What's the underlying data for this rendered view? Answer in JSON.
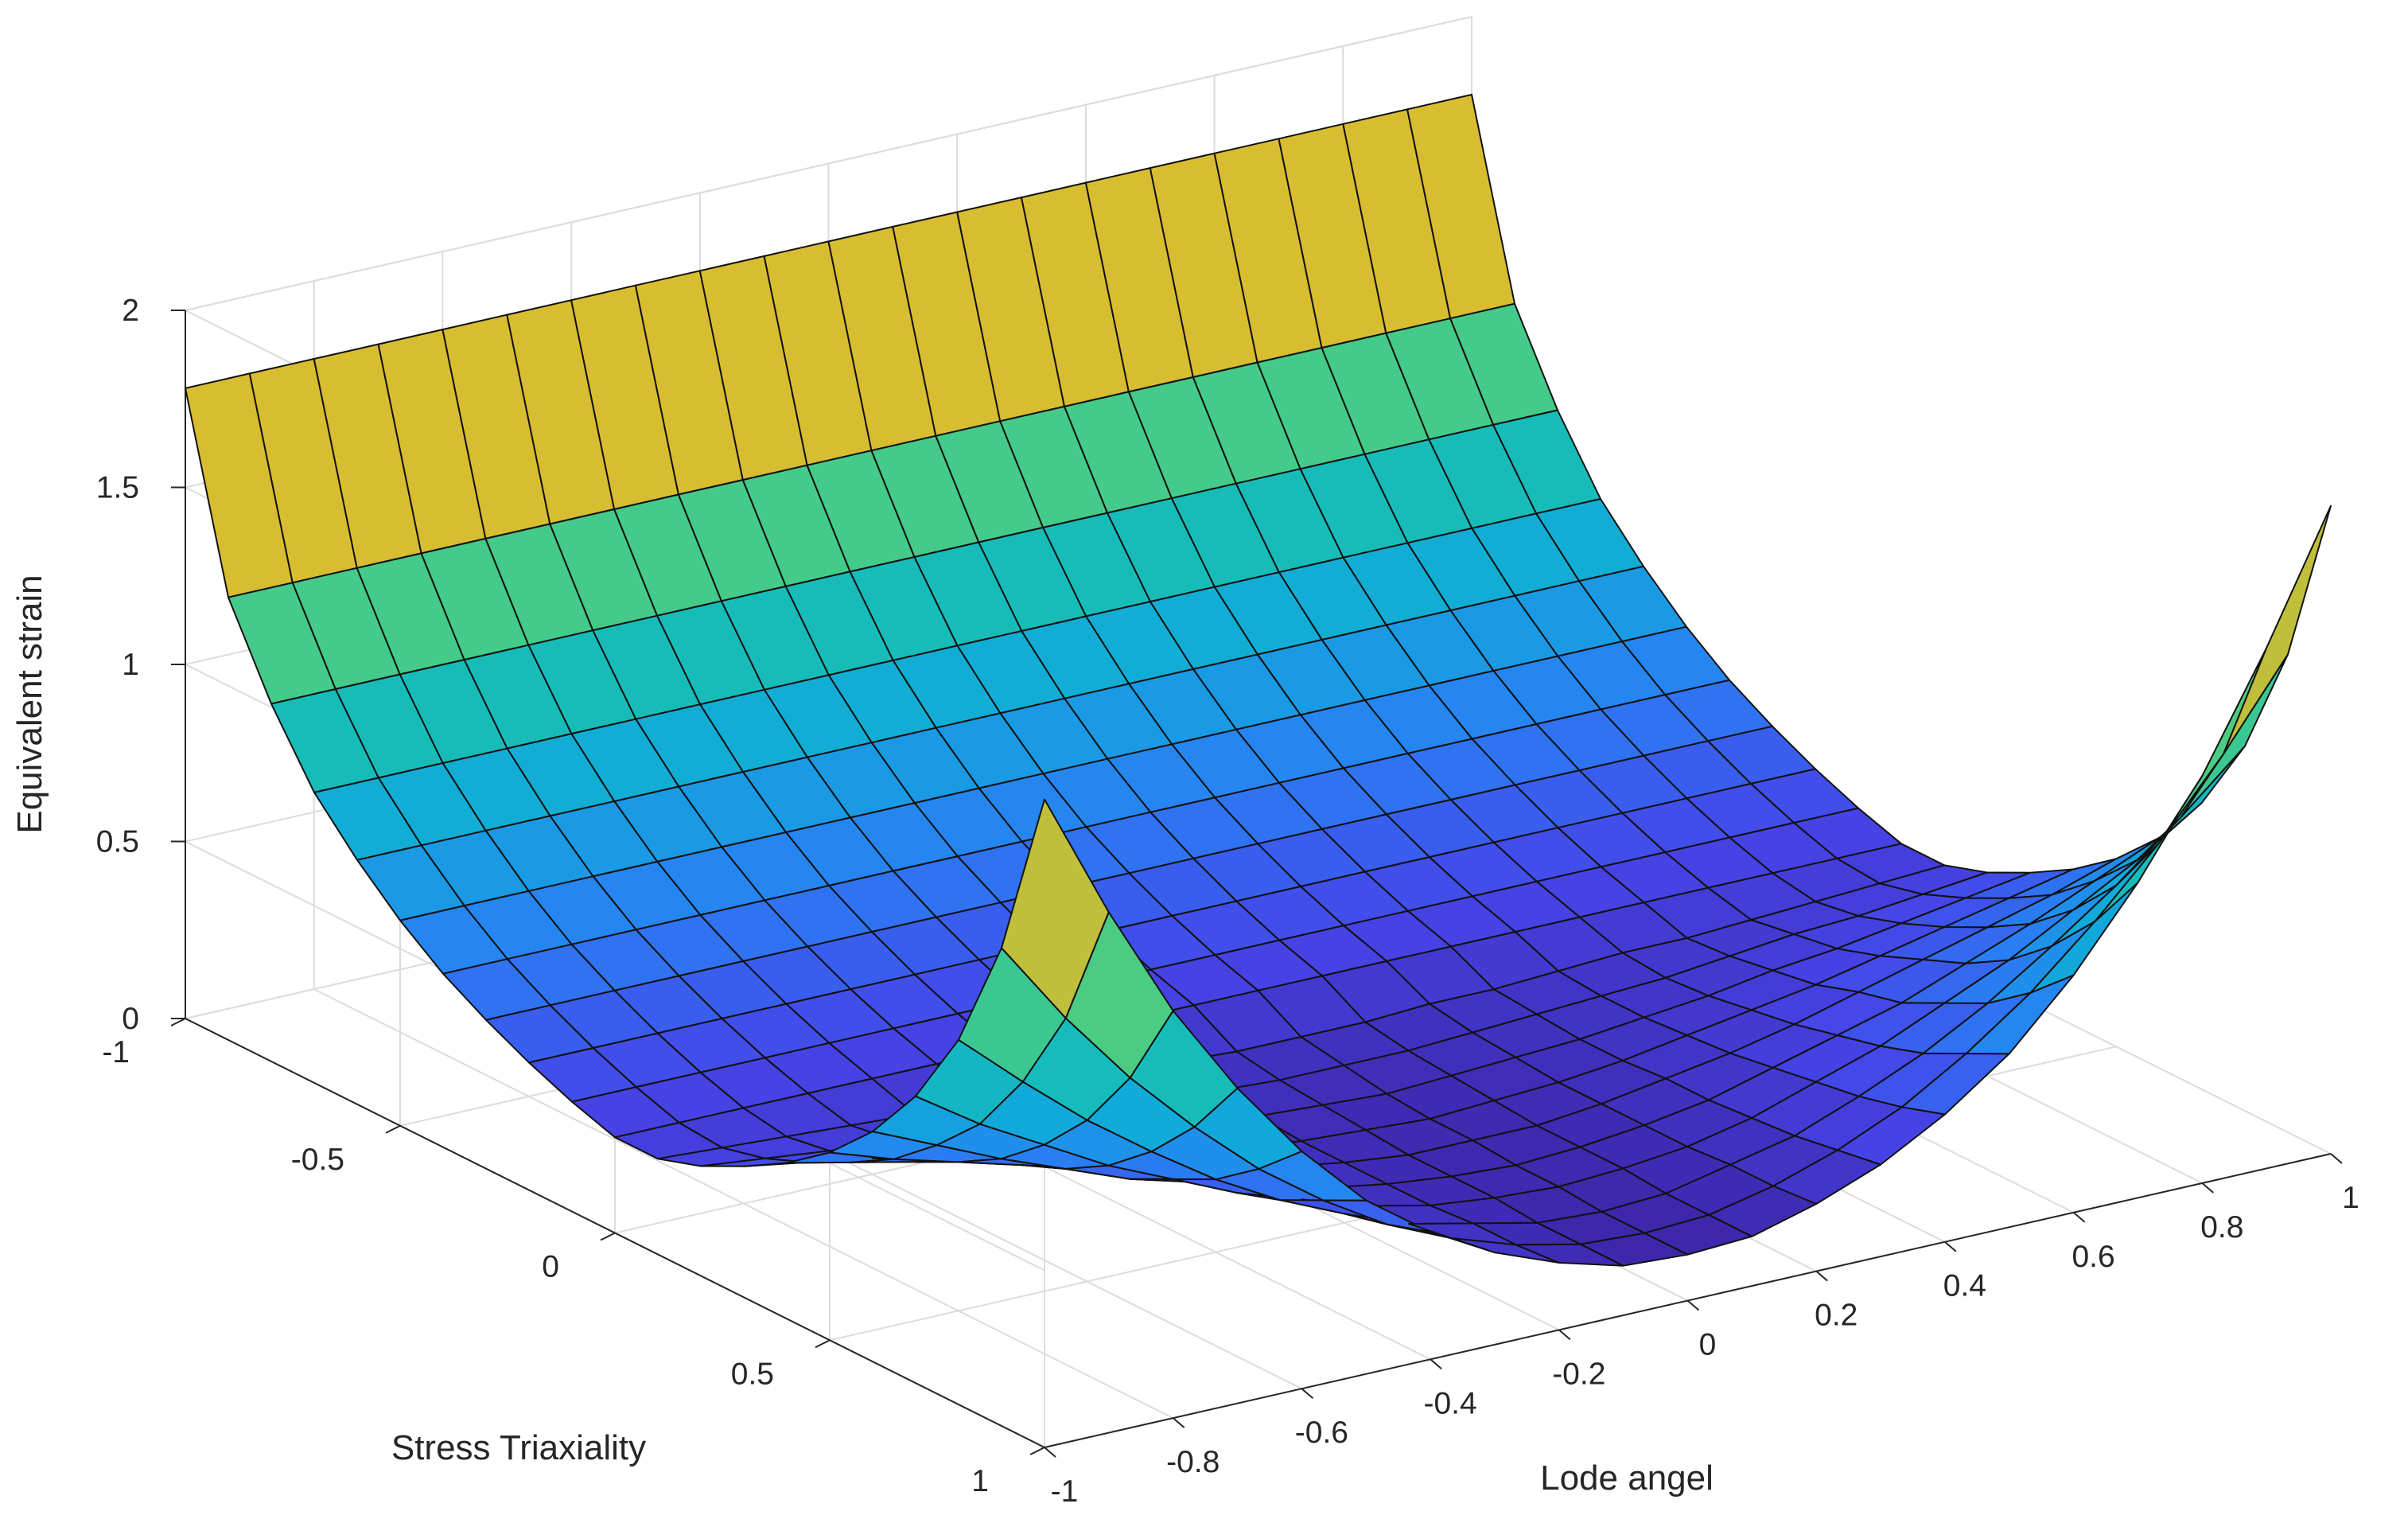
{
  "chart_data": {
    "type": "surface",
    "title": "",
    "xlabel": "Lode angel",
    "ylabel": "Stress Triaxiality",
    "zlabel": "Equivalent strain",
    "xlim": [
      -1,
      1
    ],
    "ylim": [
      -1,
      1
    ],
    "zlim": [
      0,
      2
    ],
    "xticks": [
      -1,
      -0.8,
      -0.6,
      -0.4,
      -0.2,
      0,
      0.2,
      0.4,
      0.6,
      0.8,
      1
    ],
    "xtick_labels": [
      "-1",
      "-0.8",
      "-0.6",
      "-0.4",
      "-0.2",
      "0",
      "0.2",
      "0.4",
      "0.6",
      "0.8",
      "1"
    ],
    "yticks": [
      -1,
      -0.5,
      0,
      0.5,
      1
    ],
    "ytick_labels": [
      "-1",
      "-0.5",
      "0",
      "0.5",
      "1"
    ],
    "zticks": [
      0,
      0.5,
      1,
      1.5,
      2
    ],
    "ztick_labels": [
      "0",
      "0.5",
      "1",
      "1.5",
      "2"
    ],
    "grid": true,
    "colormap": "parula",
    "x": [
      -1,
      -0.9,
      -0.8,
      -0.7,
      -0.6,
      -0.5,
      -0.4,
      -0.3,
      -0.2,
      -0.1,
      0,
      0.1,
      0.2,
      0.3,
      0.4,
      0.5,
      0.6,
      0.7,
      0.8,
      0.9,
      1
    ],
    "y": [
      -1,
      -0.9,
      -0.8,
      -0.7,
      -0.6,
      -0.5,
      -0.4,
      -0.3,
      -0.2,
      -0.1,
      0,
      0.1,
      0.2,
      0.3,
      0.4,
      0.5,
      0.6,
      0.7,
      0.8,
      0.9,
      1
    ],
    "z": [
      [
        1.78,
        1.78,
        1.78,
        1.78,
        1.78,
        1.78,
        1.78,
        1.78,
        1.78,
        1.78,
        1.78,
        1.78,
        1.78,
        1.78,
        1.78,
        1.78,
        1.78,
        1.78,
        1.78,
        1.78,
        1.78
      ],
      [
        1.25,
        1.25,
        1.25,
        1.25,
        1.25,
        1.25,
        1.25,
        1.25,
        1.25,
        1.25,
        1.25,
        1.25,
        1.25,
        1.25,
        1.25,
        1.25,
        1.25,
        1.25,
        1.25,
        1.25,
        1.25
      ],
      [
        1.01,
        1.01,
        1.01,
        1.01,
        1.01,
        1.01,
        1.01,
        1.01,
        1.01,
        1.01,
        1.01,
        1.01,
        1.01,
        1.01,
        1.01,
        1.01,
        1.01,
        1.01,
        1.01,
        1.01,
        1.01
      ],
      [
        0.82,
        0.82,
        0.82,
        0.82,
        0.82,
        0.82,
        0.82,
        0.82,
        0.82,
        0.82,
        0.82,
        0.82,
        0.82,
        0.82,
        0.82,
        0.82,
        0.82,
        0.82,
        0.82,
        0.82,
        0.82
      ],
      [
        0.69,
        0.69,
        0.69,
        0.69,
        0.69,
        0.69,
        0.69,
        0.69,
        0.69,
        0.69,
        0.69,
        0.69,
        0.69,
        0.69,
        0.69,
        0.69,
        0.69,
        0.69,
        0.69,
        0.69,
        0.69
      ],
      [
        0.58,
        0.58,
        0.58,
        0.58,
        0.58,
        0.58,
        0.58,
        0.58,
        0.58,
        0.58,
        0.58,
        0.58,
        0.58,
        0.58,
        0.58,
        0.58,
        0.58,
        0.58,
        0.58,
        0.58,
        0.58
      ],
      [
        0.49,
        0.49,
        0.49,
        0.49,
        0.49,
        0.49,
        0.49,
        0.49,
        0.49,
        0.49,
        0.49,
        0.49,
        0.49,
        0.49,
        0.49,
        0.49,
        0.49,
        0.49,
        0.49,
        0.49,
        0.49
      ],
      [
        0.42,
        0.42,
        0.42,
        0.42,
        0.42,
        0.42,
        0.42,
        0.42,
        0.42,
        0.42,
        0.42,
        0.42,
        0.42,
        0.42,
        0.42,
        0.42,
        0.42,
        0.42,
        0.42,
        0.42,
        0.42
      ],
      [
        0.36,
        0.36,
        0.36,
        0.36,
        0.36,
        0.36,
        0.36,
        0.36,
        0.36,
        0.36,
        0.36,
        0.36,
        0.36,
        0.36,
        0.36,
        0.36,
        0.36,
        0.36,
        0.36,
        0.36,
        0.36
      ],
      [
        0.31,
        0.31,
        0.31,
        0.31,
        0.31,
        0.31,
        0.31,
        0.31,
        0.31,
        0.31,
        0.31,
        0.31,
        0.31,
        0.31,
        0.31,
        0.31,
        0.31,
        0.31,
        0.31,
        0.31,
        0.31
      ],
      [
        0.27,
        0.27,
        0.27,
        0.27,
        0.27,
        0.27,
        0.27,
        0.27,
        0.27,
        0.27,
        0.27,
        0.27,
        0.27,
        0.27,
        0.27,
        0.27,
        0.27,
        0.27,
        0.27,
        0.27,
        0.27
      ],
      [
        0.27,
        0.26,
        0.25,
        0.24,
        0.23,
        0.23,
        0.22,
        0.21,
        0.21,
        0.2,
        0.2,
        0.2,
        0.21,
        0.21,
        0.22,
        0.23,
        0.23,
        0.24,
        0.25,
        0.26,
        0.27
      ],
      [
        0.31,
        0.29,
        0.27,
        0.26,
        0.24,
        0.22,
        0.21,
        0.2,
        0.19,
        0.18,
        0.18,
        0.18,
        0.19,
        0.2,
        0.21,
        0.22,
        0.24,
        0.26,
        0.27,
        0.29,
        0.31
      ],
      [
        0.37,
        0.34,
        0.31,
        0.28,
        0.26,
        0.23,
        0.21,
        0.19,
        0.18,
        0.17,
        0.16,
        0.17,
        0.18,
        0.19,
        0.21,
        0.23,
        0.26,
        0.28,
        0.31,
        0.34,
        0.37
      ],
      [
        0.44,
        0.4,
        0.36,
        0.32,
        0.28,
        0.25,
        0.22,
        0.19,
        0.17,
        0.16,
        0.15,
        0.16,
        0.17,
        0.19,
        0.22,
        0.25,
        0.28,
        0.32,
        0.36,
        0.4,
        0.44
      ],
      [
        0.53,
        0.47,
        0.42,
        0.37,
        0.32,
        0.27,
        0.23,
        0.2,
        0.17,
        0.15,
        0.15,
        0.15,
        0.17,
        0.2,
        0.23,
        0.27,
        0.32,
        0.37,
        0.42,
        0.47,
        0.53
      ],
      [
        0.65,
        0.57,
        0.49,
        0.42,
        0.35,
        0.3,
        0.25,
        0.2,
        0.17,
        0.15,
        0.14,
        0.15,
        0.17,
        0.2,
        0.25,
        0.3,
        0.35,
        0.42,
        0.49,
        0.57,
        0.65
      ],
      [
        0.81,
        0.69,
        0.59,
        0.49,
        0.41,
        0.33,
        0.27,
        0.21,
        0.17,
        0.15,
        0.14,
        0.15,
        0.17,
        0.21,
        0.27,
        0.33,
        0.41,
        0.49,
        0.59,
        0.69,
        0.81
      ],
      [
        1.03,
        0.87,
        0.72,
        0.59,
        0.47,
        0.37,
        0.29,
        0.22,
        0.18,
        0.14,
        0.13,
        0.14,
        0.18,
        0.22,
        0.29,
        0.37,
        0.47,
        0.59,
        0.72,
        0.87,
        1.03
      ],
      [
        1.35,
        1.11,
        0.9,
        0.72,
        0.56,
        0.43,
        0.32,
        0.24,
        0.18,
        0.14,
        0.13,
        0.14,
        0.18,
        0.24,
        0.32,
        0.43,
        0.56,
        0.72,
        0.9,
        1.11,
        1.35
      ],
      [
        1.83,
        1.47,
        1.15,
        0.89,
        0.67,
        0.49,
        0.36,
        0.26,
        0.19,
        0.14,
        0.13,
        0.14,
        0.19,
        0.26,
        0.36,
        0.49,
        0.67,
        0.89,
        1.15,
        1.47,
        1.83
      ]
    ]
  }
}
